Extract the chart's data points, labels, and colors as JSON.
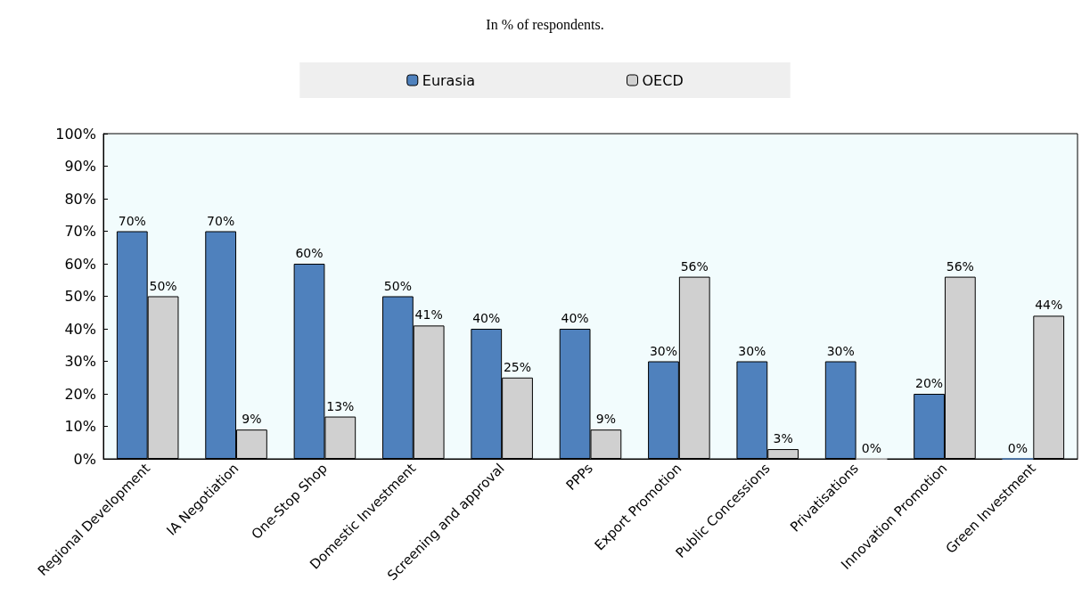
{
  "chart_data": {
    "type": "bar",
    "title": "In % of respondents.",
    "categories": [
      "Regional Development",
      "IA Negotiation",
      "One-Stop Shop",
      "Domestic Investment",
      "Screening and approval",
      "PPPs",
      "Export Promotion",
      "Public Concessions",
      "Privatisations",
      "Innovation Promotion",
      "Green Investment"
    ],
    "series": [
      {
        "name": "Eurasia",
        "color": "#4f81bd",
        "values": [
          70,
          70,
          60,
          50,
          40,
          40,
          30,
          30,
          30,
          20,
          0
        ],
        "value_labels": [
          "70%",
          "70%",
          "60%",
          "50%",
          "40%",
          "40%",
          "30%",
          "30%",
          "30%",
          "20%",
          "0%"
        ]
      },
      {
        "name": "OECD",
        "color": "#d0d0d0",
        "values": [
          50,
          9,
          13,
          41,
          25,
          9,
          56,
          3,
          0,
          56,
          44
        ],
        "value_labels": [
          "50%",
          "9%",
          "13%",
          "41%",
          "25%",
          "9%",
          "56%",
          "3%",
          "0%",
          "56%",
          "44%"
        ]
      }
    ],
    "ylim": [
      0,
      100
    ],
    "yticks": [
      {
        "value": 0,
        "label": "0%"
      },
      {
        "value": 10,
        "label": "10%"
      },
      {
        "value": 20,
        "label": "20%"
      },
      {
        "value": 30,
        "label": "30%"
      },
      {
        "value": 40,
        "label": "40%"
      },
      {
        "value": 50,
        "label": "50%"
      },
      {
        "value": 60,
        "label": "60%"
      },
      {
        "value": 70,
        "label": "70%"
      },
      {
        "value": 80,
        "label": "80%"
      },
      {
        "value": 90,
        "label": "90%"
      },
      {
        "value": 100,
        "label": "100%"
      }
    ],
    "legend": "top",
    "grid": false
  }
}
